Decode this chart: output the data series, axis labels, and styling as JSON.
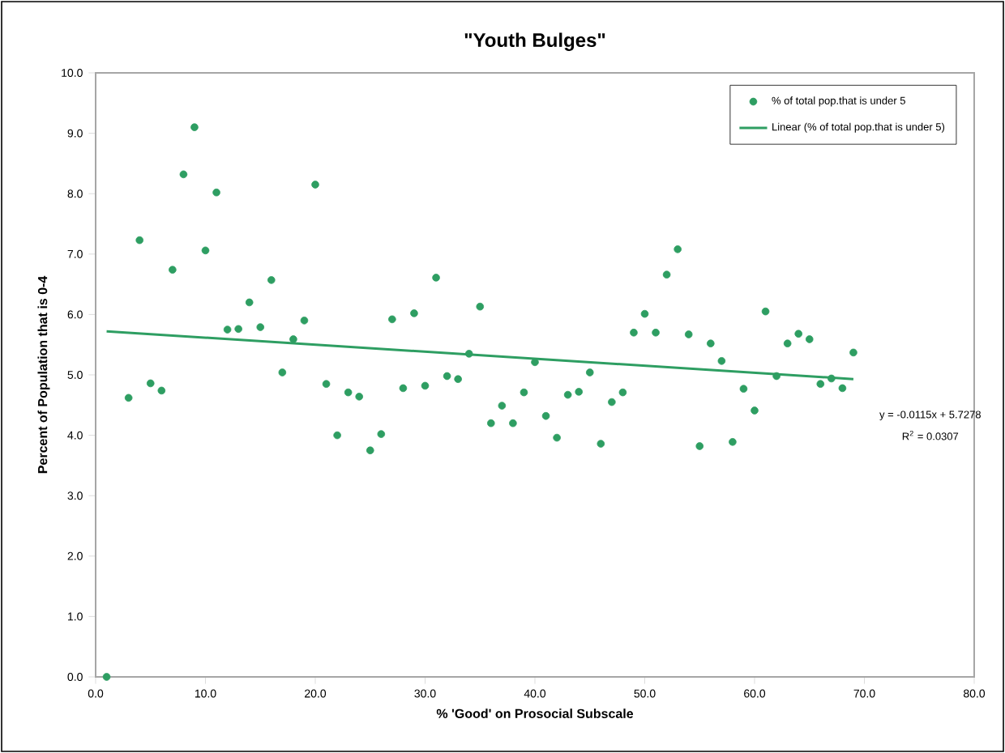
{
  "chart_data": {
    "type": "scatter",
    "title": "\"Youth Bulges\"",
    "xlabel": "% 'Good' on Prosocial Subscale",
    "ylabel": "Percent of Population that is 0-4",
    "xlim": [
      0,
      80
    ],
    "ylim": [
      0,
      10
    ],
    "xticks": [
      {
        "value": 0,
        "label": "0.0"
      },
      {
        "value": 10,
        "label": "10.0"
      },
      {
        "value": 20,
        "label": "20.0"
      },
      {
        "value": 30,
        "label": "30.0"
      },
      {
        "value": 40,
        "label": "40.0"
      },
      {
        "value": 50,
        "label": "50.0"
      },
      {
        "value": 60,
        "label": "60.0"
      },
      {
        "value": 70,
        "label": "70.0"
      },
      {
        "value": 80,
        "label": "80.0"
      }
    ],
    "yticks": [
      {
        "value": 0,
        "label": "0.0"
      },
      {
        "value": 1,
        "label": "1.0"
      },
      {
        "value": 2,
        "label": "2.0"
      },
      {
        "value": 3,
        "label": "3.0"
      },
      {
        "value": 4,
        "label": "4.0"
      },
      {
        "value": 5,
        "label": "5.0"
      },
      {
        "value": 6,
        "label": "6.0"
      },
      {
        "value": 7,
        "label": "7.0"
      },
      {
        "value": 8,
        "label": "8.0"
      },
      {
        "value": 9,
        "label": "9.0"
      },
      {
        "value": 10,
        "label": "10.0"
      }
    ],
    "grid": false,
    "legend": "top right",
    "series": [
      {
        "name": "% of total pop.that is under 5",
        "marker": "circle",
        "color": "#2e9e62",
        "x": [
          1,
          3,
          4,
          5,
          6,
          7,
          8,
          9,
          10,
          11,
          12,
          13,
          14,
          15,
          16,
          17,
          18,
          19,
          20,
          21,
          22,
          23,
          24,
          25,
          26,
          27,
          28,
          29,
          30,
          31,
          32,
          33,
          34,
          35,
          36,
          37,
          38,
          39,
          40,
          41,
          42,
          43,
          44,
          45,
          46,
          47,
          48,
          49,
          50,
          51,
          52,
          53,
          54,
          55,
          56,
          57,
          58,
          59,
          60,
          61,
          62,
          63,
          64,
          65,
          66,
          67,
          68,
          69
        ],
        "values": [
          0,
          4.62,
          7.23,
          4.86,
          4.74,
          6.74,
          8.32,
          9.1,
          7.06,
          8.02,
          5.75,
          5.76,
          6.2,
          5.79,
          6.57,
          5.04,
          5.59,
          5.9,
          8.15,
          4.85,
          4.0,
          4.71,
          4.64,
          3.75,
          4.02,
          5.92,
          4.78,
          6.02,
          4.82,
          6.61,
          4.98,
          4.93,
          5.35,
          6.13,
          4.2,
          4.49,
          4.2,
          4.71,
          5.21,
          4.32,
          3.96,
          4.67,
          4.72,
          5.04,
          3.86,
          4.55,
          4.71,
          5.7,
          6.01,
          5.7,
          6.66,
          7.08,
          5.67,
          3.82,
          5.52,
          5.23,
          3.89,
          4.77,
          4.41,
          6.05,
          4.98,
          5.52,
          5.68,
          5.59,
          4.85,
          4.94,
          4.78,
          5.37
        ]
      },
      {
        "name": "Linear (% of total pop.that is under 5)",
        "type": "line",
        "color": "#2e9e62",
        "x": [
          1,
          69
        ],
        "values": [
          5.72,
          4.93
        ],
        "marker": "none",
        "line_style": "solid"
      }
    ],
    "annotations": [
      "y = -0.0115x + 5.7278",
      "R$^{2}$ = 0.0307"
    ]
  }
}
